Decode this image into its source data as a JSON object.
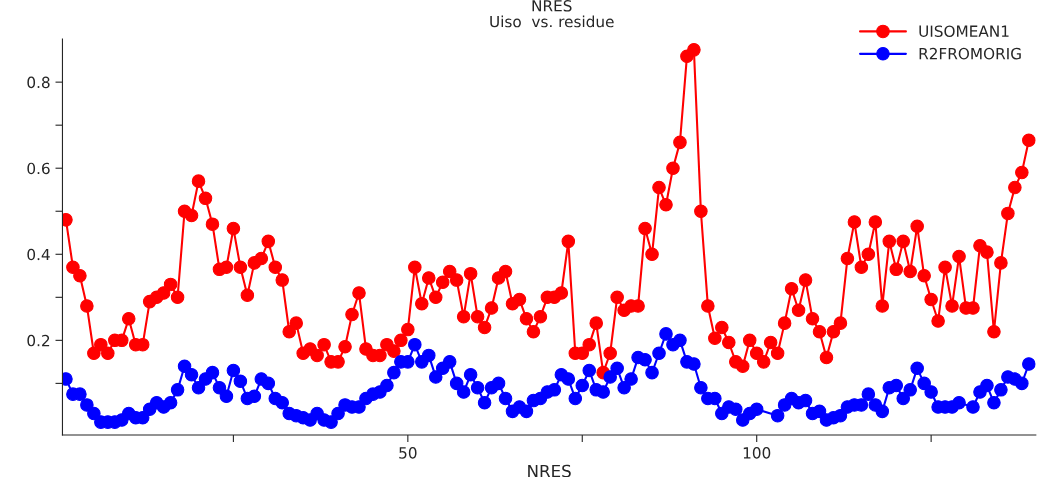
{
  "chart_data": {
    "type": "line",
    "title": "NRES",
    "subtitle": "Uiso  vs. residue",
    "xlabel": "NRES",
    "xlim": [
      0.5,
      140
    ],
    "xticks": [
      {
        "value": 25,
        "label": null
      },
      50,
      {
        "value": 75,
        "label": null
      },
      100,
      {
        "value": 125,
        "label": null
      }
    ],
    "ylim": [
      -0.02,
      0.9
    ],
    "yticks": [
      {
        "value": 0.1,
        "label": null
      },
      0.2,
      {
        "value": 0.3,
        "label": null
      },
      0.4,
      {
        "value": 0.5,
        "label": null
      },
      0.6,
      {
        "value": 0.7,
        "label": null
      },
      0.8
    ],
    "grid": false,
    "legend": "top right",
    "marker": "circle",
    "line_style": "solid",
    "series": [
      {
        "name": "UISOMEAN1",
        "color": "#ff0000",
        "x": [
          1,
          2,
          3,
          4,
          5,
          6,
          7,
          8,
          9,
          10,
          11,
          12,
          13,
          14,
          15,
          16,
          17,
          18,
          19,
          20,
          21,
          22,
          23,
          24,
          25,
          26,
          27,
          28,
          29,
          30,
          31,
          32,
          33,
          34,
          35,
          36,
          37,
          38,
          39,
          40,
          41,
          42,
          43,
          44,
          45,
          46,
          47,
          48,
          49,
          50,
          51,
          52,
          53,
          54,
          55,
          56,
          57,
          58,
          59,
          60,
          61,
          62,
          63,
          64,
          65,
          66,
          67,
          68,
          69,
          70,
          71,
          72,
          73,
          74,
          75,
          76,
          77,
          78,
          79,
          80,
          81,
          82,
          83,
          84,
          85,
          86,
          87,
          88,
          89,
          90,
          91,
          92,
          93,
          94,
          95,
          96,
          97,
          98,
          99,
          100,
          101,
          102,
          103,
          104,
          105,
          106,
          107,
          108,
          109,
          110,
          111,
          112,
          113,
          114,
          115,
          116,
          117,
          118,
          119,
          120,
          121,
          122,
          123,
          124,
          125,
          126,
          127,
          128,
          129,
          130,
          131,
          132,
          133,
          134,
          135,
          136,
          137,
          138,
          139
        ],
        "values": [
          0.48,
          0.37,
          0.35,
          0.28,
          0.17,
          0.19,
          0.17,
          0.2,
          0.2,
          0.25,
          0.19,
          0.19,
          0.29,
          0.3,
          0.31,
          0.33,
          0.3,
          0.5,
          0.49,
          0.57,
          0.53,
          0.47,
          0.365,
          0.37,
          0.46,
          0.37,
          0.305,
          0.38,
          0.39,
          0.43,
          0.37,
          0.34,
          0.22,
          0.24,
          0.17,
          0.18,
          0.165,
          0.19,
          0.15,
          0.15,
          0.185,
          0.26,
          0.31,
          0.18,
          0.165,
          0.165,
          0.19,
          0.175,
          0.2,
          0.225,
          0.37,
          0.285,
          0.345,
          0.3,
          0.335,
          0.36,
          0.34,
          0.255,
          0.355,
          0.255,
          0.23,
          0.275,
          0.345,
          0.36,
          0.285,
          0.295,
          0.25,
          0.22,
          0.255,
          0.3,
          0.3,
          0.31,
          0.43,
          0.17,
          0.17,
          0.19,
          0.24,
          0.125,
          0.17,
          0.3,
          0.27,
          0.28,
          0.28,
          0.46,
          0.4,
          0.555,
          0.515,
          0.6,
          0.66,
          0.86,
          0.875,
          0.5,
          0.28,
          0.205,
          0.23,
          0.195,
          0.15,
          0.14,
          0.2,
          0.17,
          0.15,
          0.195,
          0.17,
          0.24,
          0.32,
          0.27,
          0.34,
          0.25,
          0.22,
          0.16,
          0.22,
          0.24,
          0.39,
          0.475,
          0.37,
          0.4,
          0.475,
          0.28,
          0.43,
          0.365,
          0.43,
          0.36,
          0.465,
          0.35,
          0.295,
          0.245,
          0.37,
          0.28,
          0.395,
          0.275,
          0.275,
          0.42,
          0.405,
          0.22,
          0.38,
          0.495,
          0.555,
          0.59,
          0.665
        ]
      },
      {
        "name": "R2FROMORIG",
        "color": "#0000ff",
        "x": [
          1,
          2,
          3,
          4,
          5,
          6,
          7,
          8,
          9,
          10,
          11,
          12,
          13,
          14,
          15,
          16,
          17,
          18,
          19,
          20,
          21,
          22,
          23,
          24,
          25,
          26,
          27,
          28,
          29,
          30,
          31,
          32,
          33,
          34,
          35,
          36,
          37,
          38,
          39,
          40,
          41,
          42,
          43,
          44,
          45,
          46,
          47,
          48,
          49,
          50,
          51,
          52,
          53,
          54,
          55,
          56,
          57,
          58,
          59,
          60,
          61,
          62,
          63,
          64,
          65,
          66,
          67,
          68,
          69,
          70,
          71,
          72,
          73,
          74,
          75,
          76,
          77,
          78,
          79,
          80,
          81,
          82,
          83,
          84,
          85,
          86,
          87,
          88,
          89,
          90,
          91,
          92,
          93,
          94,
          95,
          96,
          97,
          98,
          99,
          100,
          103,
          104,
          105,
          106,
          107,
          108,
          109,
          110,
          111,
          112,
          113,
          114,
          115,
          116,
          117,
          118,
          119,
          120,
          121,
          122,
          123,
          124,
          125,
          126,
          127,
          128,
          129,
          131,
          132,
          133,
          134,
          135,
          136,
          137,
          138,
          139
        ],
        "values": [
          0.11,
          0.075,
          0.075,
          0.05,
          0.03,
          0.01,
          0.01,
          0.01,
          0.015,
          0.03,
          0.02,
          0.02,
          0.04,
          0.055,
          0.045,
          0.055,
          0.085,
          0.14,
          0.12,
          0.09,
          0.11,
          0.125,
          0.09,
          0.07,
          0.13,
          0.105,
          0.065,
          0.07,
          0.11,
          0.1,
          0.065,
          0.055,
          0.03,
          0.025,
          0.02,
          0.015,
          0.03,
          0.015,
          0.01,
          0.03,
          0.05,
          0.045,
          0.045,
          0.065,
          0.075,
          0.08,
          0.095,
          0.125,
          0.15,
          0.15,
          0.19,
          0.15,
          0.165,
          0.115,
          0.135,
          0.15,
          0.1,
          0.08,
          0.12,
          0.09,
          0.055,
          0.09,
          0.1,
          0.065,
          0.035,
          0.045,
          0.035,
          0.06,
          0.065,
          0.08,
          0.085,
          0.12,
          0.11,
          0.065,
          0.095,
          0.13,
          0.085,
          0.08,
          0.115,
          0.135,
          0.09,
          0.11,
          0.16,
          0.155,
          0.125,
          0.17,
          0.215,
          0.19,
          0.2,
          0.15,
          0.145,
          0.09,
          0.065,
          0.065,
          0.03,
          0.045,
          0.04,
          0.015,
          0.03,
          0.04,
          0.025,
          0.05,
          0.065,
          0.055,
          0.06,
          0.03,
          0.035,
          0.015,
          0.02,
          0.025,
          0.045,
          0.05,
          0.05,
          0.075,
          0.05,
          0.035,
          0.09,
          0.095,
          0.065,
          0.085,
          0.135,
          0.1,
          0.08,
          0.045,
          0.045,
          0.045,
          0.055,
          0.045,
          0.08,
          0.095,
          0.055,
          0.085,
          0.115,
          0.11,
          0.1,
          0.145
        ]
      }
    ]
  }
}
